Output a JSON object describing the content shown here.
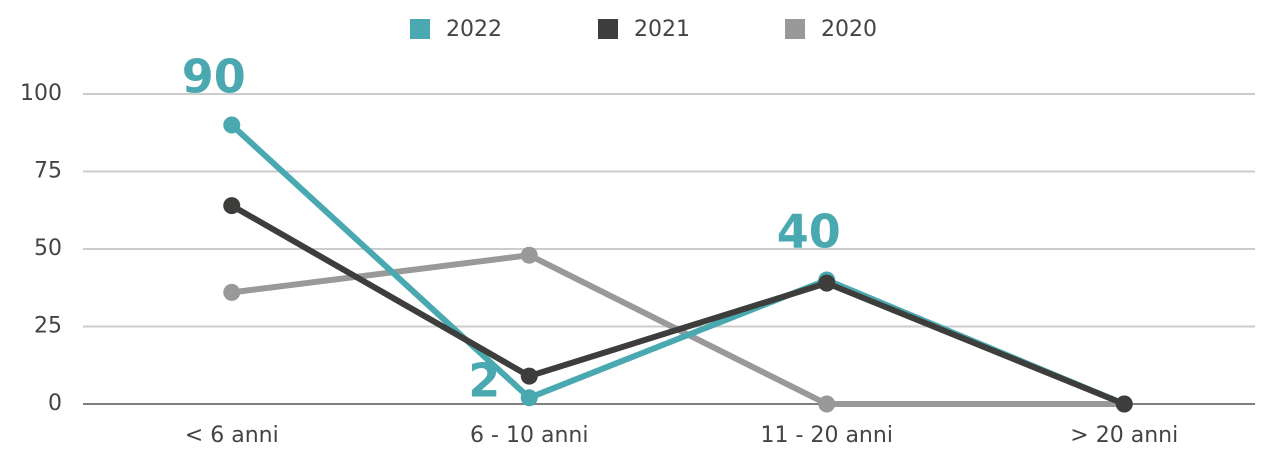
{
  "chart_data": {
    "type": "line",
    "categories": [
      "< 6 anni",
      "6 - 10 anni",
      "11 - 20 anni",
      ">  20 anni"
    ],
    "series": [
      {
        "name": "2022",
        "color": "#4aa9b0",
        "values": [
          90,
          2,
          40,
          0
        ],
        "value_labels": [
          "90",
          "2",
          "40",
          null
        ]
      },
      {
        "name": "2021",
        "color": "#3d3d3b",
        "values": [
          64,
          9,
          39,
          0
        ]
      },
      {
        "name": "2020",
        "color": "#999999",
        "values": [
          36,
          48,
          0,
          0
        ]
      }
    ],
    "ylim": [
      0,
      100
    ],
    "yticks": [
      0,
      25,
      50,
      75,
      100
    ],
    "grid": true,
    "legend": "top"
  }
}
